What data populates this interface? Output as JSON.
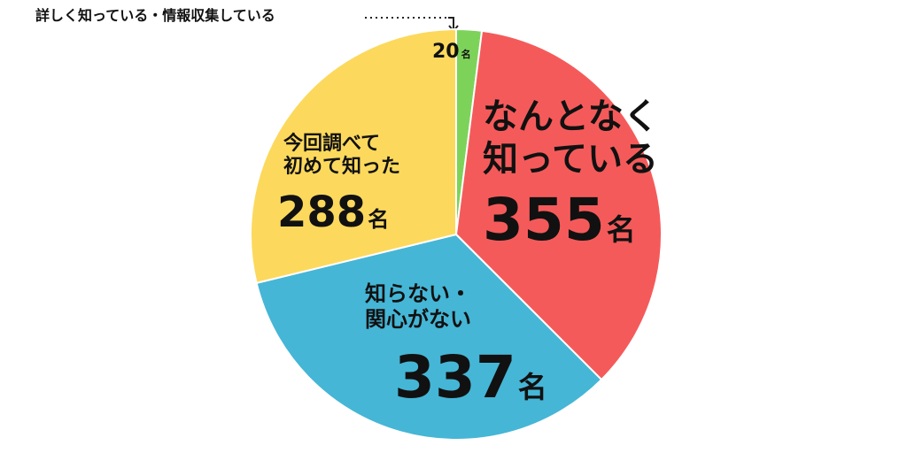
{
  "chart_data": {
    "type": "pie",
    "categories": [
      "詳しく知っている・情報収集している",
      "なんとなく\n知っている",
      "知らない・\n関心がない",
      "今回調べて\n初めて知った"
    ],
    "values": [
      20,
      355,
      337,
      288
    ],
    "value_labels": [
      "20名",
      "355名",
      "337名",
      "288名"
    ],
    "colors": [
      "#7dd35a",
      "#f55a5a",
      "#45b6d6",
      "#fcd95c"
    ]
  }
}
